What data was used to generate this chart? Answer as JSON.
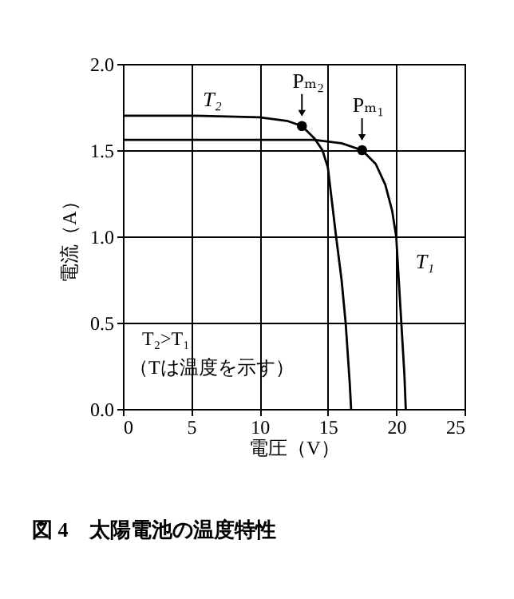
{
  "chart_data": {
    "type": "line",
    "title": "図 4　太陽電池の温度特性",
    "xlabel": "電圧（V）",
    "ylabel": "電流（A）",
    "x": [
      0,
      5,
      10,
      12,
      13.1,
      14,
      14.6,
      15,
      15.3,
      15.6,
      16,
      16.3,
      16.6,
      16.7
    ],
    "series": [
      {
        "name": "T₂",
        "color": "#000000",
        "values": [
          1.7,
          1.7,
          1.69,
          1.67,
          1.64,
          1.57,
          1.5,
          1.4,
          1.2,
          1.0,
          0.75,
          0.5,
          0.15,
          0
        ]
      },
      {
        "name": "T₁",
        "color": "#000000",
        "x": [
          0,
          10,
          14,
          16,
          17.5,
          18.5,
          19.2,
          19.7,
          20.0,
          20.3,
          20.6,
          20.7
        ],
        "values": [
          1.56,
          1.56,
          1.56,
          1.54,
          1.5,
          1.42,
          1.3,
          1.15,
          1.0,
          0.6,
          0.2,
          0
        ]
      },
      {
        "type": "scatter",
        "color": "#000000",
        "marker": "circle",
        "x": [
          13.1,
          17.5
        ],
        "values": [
          1.64,
          1.5
        ]
      }
    ],
    "annotations": [
      {
        "text": "Pₘ₂",
        "x": 13.1,
        "y": 1.64
      },
      {
        "text": "Pₘ₁",
        "x": 17.5,
        "y": 1.5
      },
      "T₂>T₁",
      "（Tは温度を示す）"
    ],
    "xlim": [
      0,
      25
    ],
    "xticks": [
      0,
      5,
      10,
      15,
      20,
      25
    ],
    "ylim": [
      0,
      2.0
    ],
    "yticks": [
      {
        "value": 0,
        "label": "0.0"
      },
      0.5,
      {
        "value": 1,
        "label": "1.0"
      },
      1.5,
      {
        "value": 2,
        "label": "2.0"
      }
    ],
    "grid": true
  }
}
